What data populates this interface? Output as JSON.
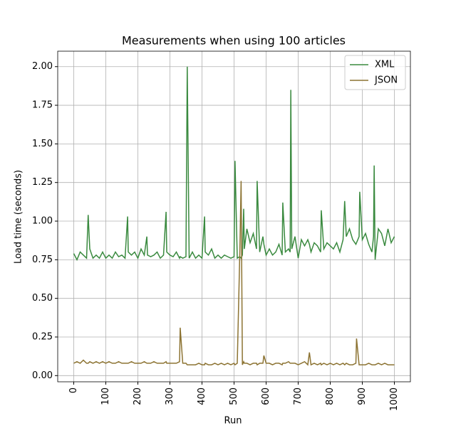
{
  "chart_data": {
    "type": "line",
    "title": "Measurements when using 100 articles",
    "x_label": "Run",
    "y_label": "Load time (seconds)",
    "x": [
      0,
      10,
      20,
      30,
      40,
      45,
      50,
      60,
      70,
      80,
      90,
      100,
      110,
      120,
      130,
      140,
      150,
      160,
      168,
      170,
      180,
      190,
      200,
      210,
      220,
      228,
      230,
      240,
      250,
      260,
      270,
      280,
      288,
      290,
      300,
      310,
      320,
      330,
      332,
      340,
      350,
      354,
      360,
      370,
      380,
      390,
      400,
      408,
      410,
      420,
      430,
      440,
      450,
      460,
      470,
      480,
      490,
      500,
      503,
      510,
      518,
      522,
      526,
      530,
      532,
      540,
      550,
      560,
      570,
      572,
      580,
      590,
      593,
      600,
      610,
      620,
      630,
      640,
      650,
      652,
      660,
      670,
      675,
      677,
      680,
      690,
      700,
      710,
      720,
      730,
      735,
      740,
      750,
      760,
      770,
      772,
      780,
      790,
      800,
      810,
      820,
      830,
      840,
      845,
      850,
      860,
      870,
      880,
      882,
      890,
      892,
      900,
      910,
      920,
      930,
      935,
      937,
      940,
      950,
      960,
      970,
      980,
      990,
      1000
    ],
    "series": [
      {
        "name": "XML",
        "color": "#3a8a3f",
        "values": [
          0.79,
          0.75,
          0.8,
          0.78,
          0.76,
          1.04,
          0.82,
          0.76,
          0.78,
          0.76,
          0.8,
          0.76,
          0.78,
          0.76,
          0.8,
          0.77,
          0.78,
          0.76,
          1.03,
          0.8,
          0.78,
          0.8,
          0.76,
          0.82,
          0.78,
          0.9,
          0.78,
          0.77,
          0.78,
          0.8,
          0.76,
          0.78,
          1.06,
          0.8,
          0.78,
          0.77,
          0.8,
          0.76,
          0.77,
          0.76,
          0.77,
          2.0,
          0.76,
          0.8,
          0.76,
          0.78,
          0.76,
          1.03,
          0.8,
          0.78,
          0.82,
          0.76,
          0.78,
          0.76,
          0.78,
          0.77,
          0.76,
          0.77,
          1.39,
          0.76,
          0.77,
          0.76,
          0.78,
          1.08,
          0.82,
          0.95,
          0.86,
          0.92,
          0.82,
          1.26,
          0.8,
          0.9,
          0.85,
          0.78,
          0.82,
          0.78,
          0.8,
          0.85,
          0.78,
          1.12,
          0.8,
          0.82,
          0.8,
          1.85,
          0.82,
          0.9,
          0.76,
          0.88,
          0.84,
          0.88,
          0.85,
          0.8,
          0.86,
          0.84,
          0.8,
          1.07,
          0.82,
          0.86,
          0.84,
          0.82,
          0.86,
          0.8,
          0.88,
          1.13,
          0.9,
          0.95,
          0.88,
          0.85,
          0.86,
          0.9,
          1.19,
          0.88,
          0.92,
          0.85,
          0.8,
          0.9,
          1.36,
          0.75,
          0.95,
          0.92,
          0.84,
          0.95,
          0.86,
          0.9
        ]
      },
      {
        "name": "JSON",
        "color": "#8c7332",
        "values": [
          0.08,
          0.09,
          0.08,
          0.1,
          0.08,
          0.08,
          0.09,
          0.08,
          0.09,
          0.08,
          0.09,
          0.08,
          0.09,
          0.08,
          0.08,
          0.09,
          0.08,
          0.08,
          0.08,
          0.08,
          0.09,
          0.08,
          0.08,
          0.08,
          0.09,
          0.08,
          0.08,
          0.08,
          0.09,
          0.08,
          0.08,
          0.08,
          0.09,
          0.08,
          0.08,
          0.08,
          0.08,
          0.09,
          0.31,
          0.08,
          0.08,
          0.07,
          0.07,
          0.07,
          0.07,
          0.08,
          0.07,
          0.07,
          0.08,
          0.07,
          0.07,
          0.08,
          0.07,
          0.08,
          0.07,
          0.08,
          0.07,
          0.08,
          0.07,
          0.08,
          0.8,
          1.26,
          0.07,
          0.09,
          0.08,
          0.08,
          0.07,
          0.08,
          0.08,
          0.07,
          0.08,
          0.08,
          0.13,
          0.08,
          0.08,
          0.07,
          0.08,
          0.08,
          0.07,
          0.08,
          0.08,
          0.09,
          0.08,
          0.08,
          0.08,
          0.08,
          0.07,
          0.08,
          0.09,
          0.07,
          0.15,
          0.07,
          0.08,
          0.07,
          0.08,
          0.07,
          0.08,
          0.07,
          0.08,
          0.07,
          0.08,
          0.07,
          0.08,
          0.07,
          0.08,
          0.07,
          0.07,
          0.08,
          0.24,
          0.07,
          0.07,
          0.07,
          0.07,
          0.08,
          0.07,
          0.07,
          0.07,
          0.07,
          0.08,
          0.07,
          0.08,
          0.07,
          0.07,
          0.07
        ]
      }
    ],
    "xlim": [
      -50,
      1050
    ],
    "ylim": [
      -0.04,
      2.1
    ],
    "xticks": [
      0,
      100,
      200,
      300,
      400,
      500,
      600,
      700,
      800,
      900,
      1000
    ],
    "yticks": [
      {
        "value": 0,
        "label": "0.00"
      },
      {
        "value": 0.25,
        "label": "0.25"
      },
      {
        "value": 0.5,
        "label": "0.50"
      },
      {
        "value": 0.75,
        "label": "0.75"
      },
      {
        "value": 1,
        "label": "1.00"
      },
      {
        "value": 1.25,
        "label": "1.25"
      },
      {
        "value": 1.5,
        "label": "1.50"
      },
      {
        "value": 1.75,
        "label": "1.75"
      },
      {
        "value": 2,
        "label": "2.00"
      }
    ],
    "grid": true,
    "legend": "upper right"
  }
}
